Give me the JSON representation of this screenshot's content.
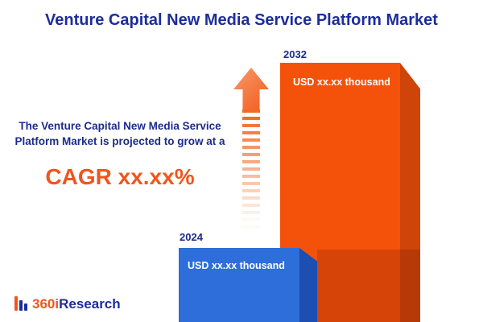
{
  "title": "Venture Capital New Media Service Platform Market",
  "description": {
    "text": "The Venture Capital New Media Service Platform Market is projected to grow at a",
    "cagr": "CAGR xx.xx%"
  },
  "chart_data": {
    "type": "bar",
    "title": "Venture Capital New Media Service Platform Market",
    "categories": [
      "2024",
      "2032"
    ],
    "values": [
      "xx.xx",
      "xx.xx"
    ],
    "unit": "USD thousand",
    "value_labels": [
      "USD xx.xx thousand",
      "USD xx.xx thousand"
    ],
    "legend_position": "none",
    "grid": false
  },
  "bars": [
    {
      "year": "2024",
      "value_label": "USD xx.xx thousand",
      "color": "#2e6eda",
      "side_color": "#1c4fb0"
    },
    {
      "year": "2032",
      "value_label": "USD xx.xx thousand",
      "color": "#f4520a",
      "side_color": "#cf4409"
    }
  ],
  "logo": {
    "prefix": "360i",
    "suffix": "Research"
  },
  "colors": {
    "navy": "#1d2d9c",
    "orange_accent": "#f1551c",
    "background": "#ffffff"
  }
}
